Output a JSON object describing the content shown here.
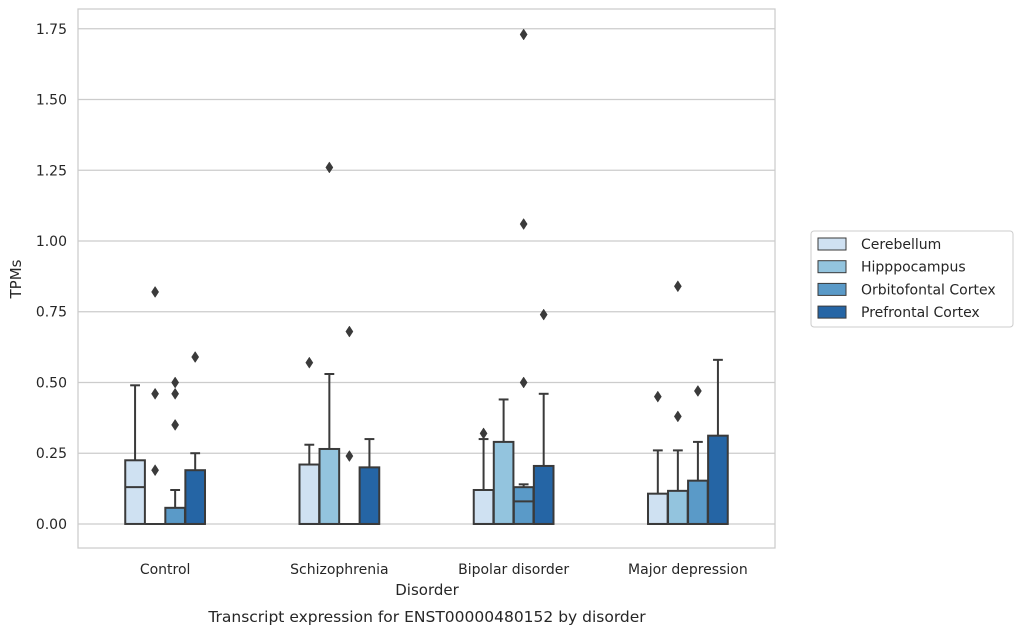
{
  "chart_data": {
    "type": "box",
    "title": "",
    "caption": "Transcript expression for ENST00000480152 by disorder",
    "xlabel": "Disorder",
    "ylabel": "TPMs",
    "ylim": [
      -0.085,
      1.82
    ],
    "yticks": [
      "0.00",
      "0.25",
      "0.50",
      "0.75",
      "1.00",
      "1.25",
      "1.50",
      "1.75"
    ],
    "yticks_values": [
      0,
      0.25,
      0.5,
      0.75,
      1.0,
      1.25,
      1.5,
      1.75
    ],
    "grid": "horizontal",
    "legend_position": "right",
    "categories": [
      "Control",
      "Schizophrenia",
      "Bipolar disorder",
      "Major depression"
    ],
    "series": [
      {
        "name": "Cerebellum",
        "color": "#cfe1f2",
        "boxes": [
          {
            "q1": 0,
            "median": 0.13,
            "q3": 0.225,
            "whisker_low": 0,
            "whisker_high": 0.49,
            "outliers": []
          },
          {
            "q1": 0,
            "median": 0,
            "q3": 0.21,
            "whisker_low": 0,
            "whisker_high": 0.28,
            "outliers": [
              0.57
            ]
          },
          {
            "q1": 0,
            "median": 0,
            "q3": 0.12,
            "whisker_low": 0,
            "whisker_high": 0.3,
            "outliers": [
              0.32
            ]
          },
          {
            "q1": 0,
            "median": 0,
            "q3": 0.107,
            "whisker_low": 0,
            "whisker_high": 0.26,
            "outliers": [
              0.45
            ]
          }
        ]
      },
      {
        "name": "Hipppocampus",
        "color": "#93c4de",
        "boxes": [
          {
            "q1": 0,
            "median": 0,
            "q3": 0,
            "whisker_low": 0,
            "whisker_high": 0,
            "outliers": [
              0.19,
              0.46,
              0.82
            ]
          },
          {
            "q1": 0,
            "median": 0,
            "q3": 0.265,
            "whisker_low": 0,
            "whisker_high": 0.53,
            "outliers": [
              1.26
            ]
          },
          {
            "q1": 0,
            "median": 0,
            "q3": 0.29,
            "whisker_low": 0,
            "whisker_high": 0.44,
            "outliers": []
          },
          {
            "q1": 0,
            "median": 0,
            "q3": 0.117,
            "whisker_low": 0,
            "whisker_high": 0.26,
            "outliers": [
              0.38,
              0.84
            ]
          }
        ]
      },
      {
        "name": "Orbitofontal Cortex",
        "color": "#5a9ac8",
        "boxes": [
          {
            "q1": 0,
            "median": 0,
            "q3": 0.057,
            "whisker_low": 0,
            "whisker_high": 0.12,
            "outliers": [
              0.35,
              0.46,
              0.5
            ]
          },
          {
            "q1": 0,
            "median": 0,
            "q3": 0,
            "whisker_low": 0,
            "whisker_high": 0,
            "outliers": [
              0.24,
              0.68
            ]
          },
          {
            "q1": 0,
            "median": 0.08,
            "q3": 0.13,
            "whisker_low": 0,
            "whisker_high": 0.14,
            "outliers": [
              0.5,
              1.06,
              1.73
            ]
          },
          {
            "q1": 0,
            "median": 0,
            "q3": 0.153,
            "whisker_low": 0,
            "whisker_high": 0.29,
            "outliers": [
              0.47
            ]
          }
        ]
      },
      {
        "name": "Prefrontal Cortex",
        "color": "#2565a5",
        "boxes": [
          {
            "q1": 0,
            "median": 0,
            "q3": 0.19,
            "whisker_low": 0,
            "whisker_high": 0.25,
            "outliers": [
              0.59
            ]
          },
          {
            "q1": 0,
            "median": 0,
            "q3": 0.2,
            "whisker_low": 0,
            "whisker_high": 0.3,
            "outliers": []
          },
          {
            "q1": 0,
            "median": 0,
            "q3": 0.205,
            "whisker_low": 0,
            "whisker_high": 0.46,
            "outliers": [
              0.74
            ]
          },
          {
            "q1": 0,
            "median": 0,
            "q3": 0.312,
            "whisker_low": 0,
            "whisker_high": 0.58,
            "outliers": []
          }
        ]
      }
    ]
  }
}
